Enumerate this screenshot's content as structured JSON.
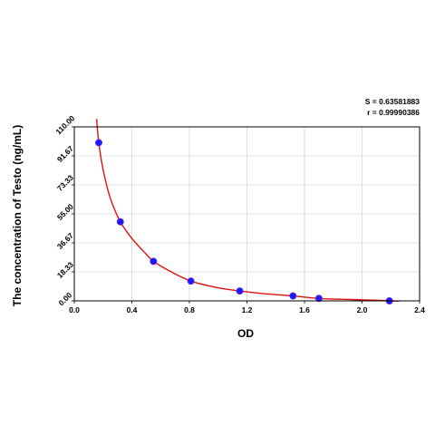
{
  "chart_data": {
    "type": "scatter",
    "title": "",
    "xlabel": "OD",
    "ylabel": "The concentration of Testo (ng/mL)",
    "xlim": [
      0.0,
      2.4
    ],
    "ylim": [
      0.0,
      110.0
    ],
    "x_ticks": [
      "0.0",
      "0.4",
      "0.8",
      "1.2",
      "1.6",
      "2.0",
      "2.4"
    ],
    "y_ticks": [
      "0.00",
      "18.33",
      "36.67",
      "55.00",
      "73.33",
      "91.67",
      "110.00"
    ],
    "grid": true,
    "stats": {
      "s_label": "S = 0.63581883",
      "r_label": "r = 0.99990386"
    },
    "series": [
      {
        "kind": "points",
        "color": "#1a1aff",
        "x": [
          0.17,
          0.32,
          0.55,
          0.81,
          1.15,
          1.52,
          1.7,
          2.19
        ],
        "y": [
          100.0,
          50.0,
          25.0,
          12.5,
          6.25,
          3.13,
          1.56,
          0.0
        ]
      },
      {
        "kind": "fit-curve",
        "color": "#e01010",
        "x": [
          0.155,
          0.17,
          0.2,
          0.25,
          0.32,
          0.4,
          0.5,
          0.55,
          0.65,
          0.81,
          1.0,
          1.15,
          1.3,
          1.52,
          1.7,
          1.9,
          2.1,
          2.19,
          2.26
        ],
        "y": [
          115.0,
          100.0,
          83.0,
          65.0,
          50.0,
          39.5,
          29.5,
          25.0,
          19.5,
          12.5,
          8.3,
          6.25,
          4.7,
          3.13,
          1.56,
          0.9,
          0.4,
          0.0,
          -0.1
        ]
      }
    ]
  },
  "colors": {
    "axis": "#000000",
    "grid": "#c8c8c8",
    "point_fill": "#1a1aff",
    "point_stroke": "#1a1aff",
    "curve": "#e01010"
  }
}
